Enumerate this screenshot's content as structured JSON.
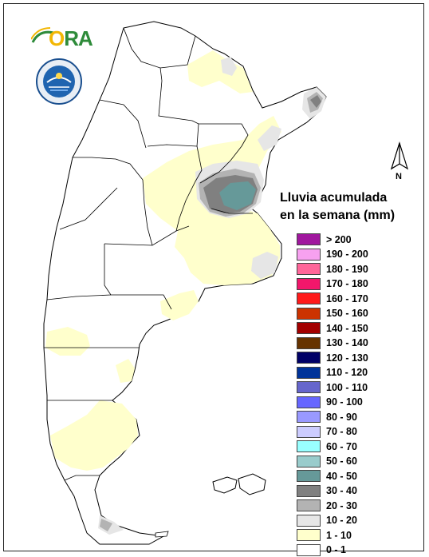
{
  "logos": {
    "ora": "ORA",
    "ora_first_letter": "O",
    "ora_rest": "RA",
    "smn_seal_icon": "smn-seal-icon"
  },
  "north_arrow": {
    "label": "N"
  },
  "legend": {
    "title_line1": "Lluvia acumulada",
    "title_line2": "en la semana (mm)",
    "items": [
      {
        "label": "> 200",
        "color": "#a0179e"
      },
      {
        "label": "190 - 200",
        "color": "#f7a1f0"
      },
      {
        "label": "180 - 190",
        "color": "#ff6699"
      },
      {
        "label": "170 - 180",
        "color": "#f2176b"
      },
      {
        "label": "160 - 170",
        "color": "#ff1a1a"
      },
      {
        "label": "150 - 160",
        "color": "#cc3300"
      },
      {
        "label": "140 - 150",
        "color": "#a30000"
      },
      {
        "label": "130 - 140",
        "color": "#663300"
      },
      {
        "label": "120 - 130",
        "color": "#000066"
      },
      {
        "label": "110 - 120",
        "color": "#003399"
      },
      {
        "label": "100 - 110",
        "color": "#6666cc"
      },
      {
        "label": "90 - 100",
        "color": "#6666ff"
      },
      {
        "label": "80 - 90",
        "color": "#9999ff"
      },
      {
        "label": "70 - 80",
        "color": "#ccccff"
      },
      {
        "label": "60 - 70",
        "color": "#99ffff"
      },
      {
        "label": "50 - 60",
        "color": "#99cccc"
      },
      {
        "label": "40 - 50",
        "color": "#669999"
      },
      {
        "label": "30 - 40",
        "color": "#808080"
      },
      {
        "label": "20 - 30",
        "color": "#b3b3b3"
      },
      {
        "label": "10 - 20",
        "color": "#e6e6e6"
      },
      {
        "label": "1 - 10",
        "color": "#ffffcc"
      },
      {
        "label": "0 - 1",
        "color": "#ffffff"
      }
    ]
  }
}
